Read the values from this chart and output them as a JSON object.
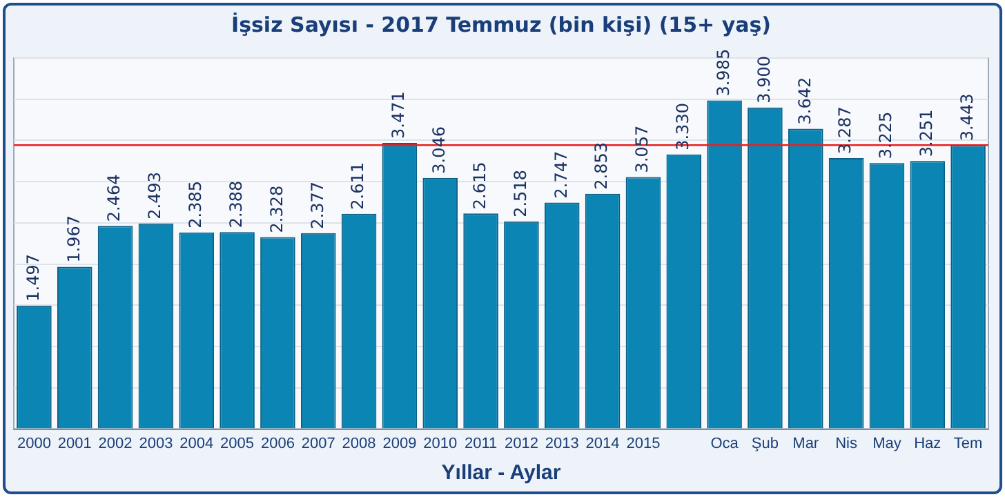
{
  "chart_data": {
    "type": "bar",
    "title": "İşsiz Sayısı - 2017 Temmuz (bin kişi) (15+ yaş)",
    "xlabel": "Yıllar - Aylar",
    "categories": [
      "2000",
      "2001",
      "2002",
      "2003",
      "2004",
      "2005",
      "2006",
      "2007",
      "2008",
      "2009",
      "2010",
      "2011",
      "2012",
      "2013",
      "2014",
      "2015",
      null,
      "Oca",
      "Şub",
      "Mar",
      "Nis",
      "May",
      "Haz",
      "Tem"
    ],
    "values": [
      1497,
      1967,
      2464,
      2493,
      2385,
      2388,
      2328,
      2377,
      2611,
      3471,
      3046,
      2615,
      2518,
      2747,
      2853,
      3057,
      3330,
      3985,
      3900,
      3642,
      3287,
      3225,
      3251,
      3443
    ],
    "value_labels": [
      "1.497",
      "1.967",
      "2.464",
      "2.493",
      "2.385",
      "2.388",
      "2.328",
      "2.377",
      "2.611",
      "3.471",
      "3.046",
      "2.615",
      "2.518",
      "2.747",
      "2.853",
      "3.057",
      "3.330",
      "3.985",
      "3.900",
      "3.642",
      "3.287",
      "3.225",
      "3.251",
      "3.443"
    ],
    "color": "#0b86b4",
    "ref_lines": [
      {
        "axis": "y",
        "value": 3443,
        "color": "#e82020"
      }
    ],
    "grid": "y",
    "tick_labels": "x",
    "legend": false
  }
}
